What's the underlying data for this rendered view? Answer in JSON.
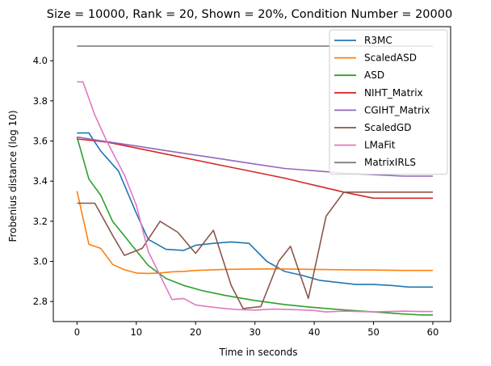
{
  "chart_data": {
    "type": "line",
    "title": "Size = 10000, Rank = 20, Shown = 20%, Condition Number = 20000",
    "xlabel": "Time in seconds",
    "ylabel": "Frobenius distance (log 10)",
    "xlim": [
      -4,
      63
    ],
    "ylim": [
      2.7,
      4.17
    ],
    "xticks": [
      0,
      10,
      20,
      30,
      40,
      50,
      60
    ],
    "yticks": [
      2.8,
      3.0,
      3.2,
      3.4,
      3.6,
      3.8,
      4.0
    ],
    "xtick_labels": [
      "0",
      "10",
      "20",
      "30",
      "40",
      "50",
      "60"
    ],
    "ytick_labels": [
      "2.8",
      "3.0",
      "3.2",
      "3.4",
      "3.6",
      "3.8",
      "4.0"
    ],
    "legend_position": "top-right",
    "grid": false,
    "series": [
      {
        "name": "R3MC",
        "color": "#1f77b4",
        "x": [
          0,
          2,
          4,
          7,
          10,
          12,
          15,
          18,
          20,
          23,
          26,
          29,
          32,
          35,
          38,
          41,
          44,
          47,
          50,
          53,
          56,
          60
        ],
        "y": [
          3.64,
          3.64,
          3.55,
          3.45,
          3.24,
          3.11,
          3.06,
          3.055,
          3.08,
          3.09,
          3.097,
          3.09,
          3.0,
          2.95,
          2.93,
          2.905,
          2.895,
          2.885,
          2.885,
          2.88,
          2.872,
          2.872
        ]
      },
      {
        "name": "ScaledASD",
        "color": "#ff7f0e",
        "x": [
          0,
          2,
          4,
          6,
          8,
          10,
          12,
          14,
          16,
          18,
          20,
          25,
          30,
          35,
          40,
          45,
          50,
          55,
          60
        ],
        "y": [
          3.35,
          3.085,
          3.065,
          2.985,
          2.958,
          2.942,
          2.94,
          2.942,
          2.948,
          2.95,
          2.955,
          2.96,
          2.962,
          2.962,
          2.96,
          2.958,
          2.957,
          2.955,
          2.955
        ]
      },
      {
        "name": "ASD",
        "color": "#2ca02c",
        "x": [
          0,
          2,
          4,
          6,
          9,
          12,
          15,
          18,
          21,
          25,
          30,
          35,
          40,
          45,
          50,
          55,
          58,
          60
        ],
        "y": [
          3.62,
          3.41,
          3.33,
          3.2,
          3.09,
          2.98,
          2.915,
          2.88,
          2.855,
          2.83,
          2.805,
          2.785,
          2.77,
          2.758,
          2.748,
          2.738,
          2.733,
          2.733
        ]
      },
      {
        "name": "NIHT_Matrix",
        "color": "#d62728",
        "x": [
          0,
          5,
          10,
          15,
          20,
          25,
          30,
          35,
          40,
          45,
          50,
          55,
          60
        ],
        "y": [
          3.61,
          3.595,
          3.565,
          3.535,
          3.505,
          3.475,
          3.445,
          3.415,
          3.38,
          3.345,
          3.315,
          3.315,
          3.315
        ]
      },
      {
        "name": "CGIHT_Matrix",
        "color": "#9467bd",
        "x": [
          0,
          5,
          10,
          15,
          20,
          25,
          30,
          35,
          40,
          45,
          50,
          55,
          60
        ],
        "y": [
          3.62,
          3.597,
          3.575,
          3.552,
          3.53,
          3.508,
          3.485,
          3.463,
          3.452,
          3.44,
          3.432,
          3.425,
          3.425
        ]
      },
      {
        "name": "ScaledGD",
        "color": "#8c564b",
        "x": [
          0,
          3,
          6,
          8,
          11,
          14,
          17,
          20,
          23,
          26,
          28,
          31,
          34,
          36,
          39,
          42,
          45,
          50,
          55,
          60
        ],
        "y": [
          3.29,
          3.29,
          3.13,
          3.03,
          3.065,
          3.2,
          3.145,
          3.04,
          3.155,
          2.88,
          2.765,
          2.775,
          3.0,
          3.075,
          2.815,
          3.225,
          3.345,
          3.345,
          3.345,
          3.345
        ]
      },
      {
        "name": "LMaFit",
        "color": "#e377c2",
        "x": [
          0,
          1,
          3,
          5,
          8,
          10,
          12,
          14,
          16,
          18,
          20,
          22,
          25,
          27,
          30,
          33,
          36,
          40,
          42,
          45,
          50,
          55,
          58,
          60
        ],
        "y": [
          3.895,
          3.895,
          3.73,
          3.6,
          3.43,
          3.28,
          3.05,
          2.93,
          2.81,
          2.815,
          2.783,
          2.775,
          2.765,
          2.76,
          2.757,
          2.762,
          2.76,
          2.755,
          2.748,
          2.752,
          2.748,
          2.752,
          2.75,
          2.75
        ]
      },
      {
        "name": "MatrixIRLS",
        "color": "#7f7f7f",
        "x": [
          0,
          60
        ],
        "y": [
          4.073,
          4.073
        ]
      }
    ]
  }
}
